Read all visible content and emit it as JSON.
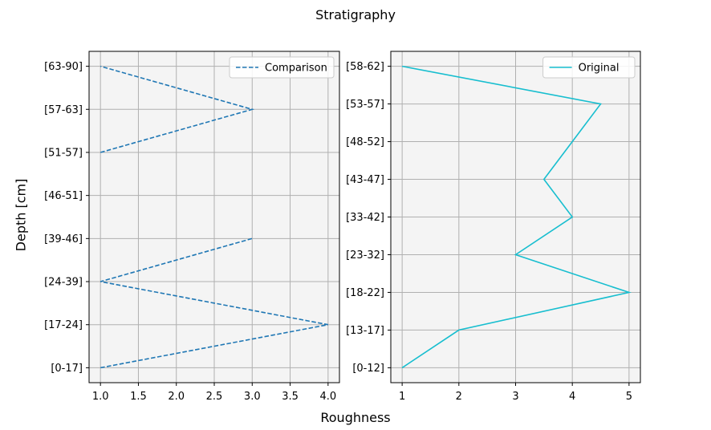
{
  "figure": {
    "title": "Stratigraphy",
    "xlabel": "Roughness",
    "ylabel": "Depth [cm]"
  },
  "chart_data": [
    {
      "type": "line",
      "categories": [
        "[0-17]",
        "[17-24]",
        "[24-39]",
        "[39-46]",
        "[46-51]",
        "[51-57]",
        "[57-63]",
        "[63-90]"
      ],
      "series": [
        {
          "name": "Comparison",
          "x": [
            1.0,
            4.0,
            1.0,
            3.0,
            null,
            1.0,
            3.0,
            1.0
          ],
          "color": "#1f77b4",
          "linestyle": "dashed"
        }
      ],
      "x_ticks": [
        "1.0",
        "1.5",
        "2.0",
        "2.5",
        "3.0",
        "3.5",
        "4.0"
      ],
      "xlim": [
        0.85,
        4.15
      ],
      "grid": true,
      "legend": "top-right"
    },
    {
      "type": "line",
      "categories": [
        "[0-12]",
        "[13-17]",
        "[18-22]",
        "[23-32]",
        "[33-42]",
        "[43-47]",
        "[48-52]",
        "[53-57]",
        "[58-62]"
      ],
      "series": [
        {
          "name": "Original",
          "x": [
            1,
            2,
            5,
            3,
            4,
            3.5,
            4,
            4.5,
            1
          ],
          "color": "#17becf",
          "linestyle": "solid"
        }
      ],
      "x_ticks": [
        "1",
        "2",
        "3",
        "4",
        "5"
      ],
      "xlim": [
        0.8,
        5.2
      ],
      "grid": true,
      "legend": "top-right"
    }
  ]
}
